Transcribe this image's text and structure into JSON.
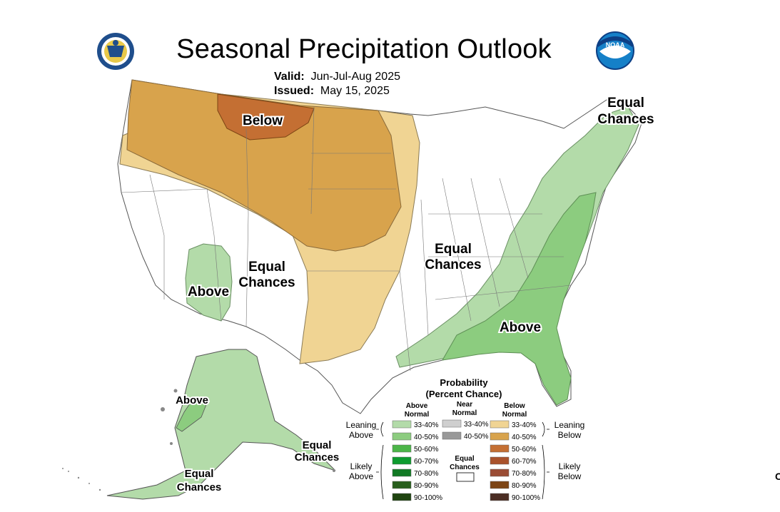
{
  "title": "Seasonal Precipitation Outlook",
  "valid_label": "Valid:",
  "valid_value": "Jun-Jul-Aug 2025",
  "issued_label": "Issued:",
  "issued_value": "May 15, 2025",
  "logos": {
    "left": "doc-seal-icon",
    "right": "noaa-logo-icon",
    "noaa_text": "NOAA"
  },
  "map_labels": {
    "below": "Below",
    "equal_ne_1": "Equal",
    "equal_ne_2": "Chances",
    "equal_c_1": "Equal",
    "equal_c_2": "Chances",
    "equal_sw_1": "Equal",
    "equal_sw_2": "Chances",
    "above_sw": "Above",
    "above_se": "Above",
    "above_ak": "Above",
    "equal_ak_se_1": "Equal",
    "equal_ak_se_2": "Chances",
    "equal_ak_s_1": "Equal",
    "equal_ak_s_2": "Chances"
  },
  "legend": {
    "title_1": "Probability",
    "title_2": "(Percent Chance)",
    "col_above_1": "Above",
    "col_above_2": "Normal",
    "col_near_1": "Near",
    "col_near_2": "Normal",
    "col_below_1": "Below",
    "col_below_2": "Normal",
    "leaning_1": "Leaning",
    "leaning_above_2": "Above",
    "leaning_below_2": "Below",
    "likely_1": "Likely",
    "likely_above_2": "Above",
    "likely_below_2": "Below",
    "equal_1": "Equal",
    "equal_2": "Chances",
    "above_rows": [
      {
        "range": "33-40%",
        "color": "#b3dba9"
      },
      {
        "range": "40-50%",
        "color": "#8ccc7f"
      },
      {
        "range": "50-60%",
        "color": "#4cb548"
      },
      {
        "range": "60-70%",
        "color": "#0e9b2f"
      },
      {
        "range": "70-80%",
        "color": "#117a24"
      },
      {
        "range": "80-90%",
        "color": "#285e1c"
      },
      {
        "range": "90-100%",
        "color": "#1f4410"
      }
    ],
    "near_rows": [
      {
        "range": "33-40%",
        "color": "#cfcfcf"
      },
      {
        "range": "40-50%",
        "color": "#999999"
      }
    ],
    "below_rows": [
      {
        "range": "33-40%",
        "color": "#f0d493"
      },
      {
        "range": "40-50%",
        "color": "#d8a34c"
      },
      {
        "range": "50-60%",
        "color": "#c46f33"
      },
      {
        "range": "60-70%",
        "color": "#a9522c"
      },
      {
        "range": "70-80%",
        "color": "#9a4c34"
      },
      {
        "range": "80-90%",
        "color": "#7c4414"
      },
      {
        "range": "90-100%",
        "color": "#4b2e24"
      }
    ]
  },
  "credit": "C"
}
